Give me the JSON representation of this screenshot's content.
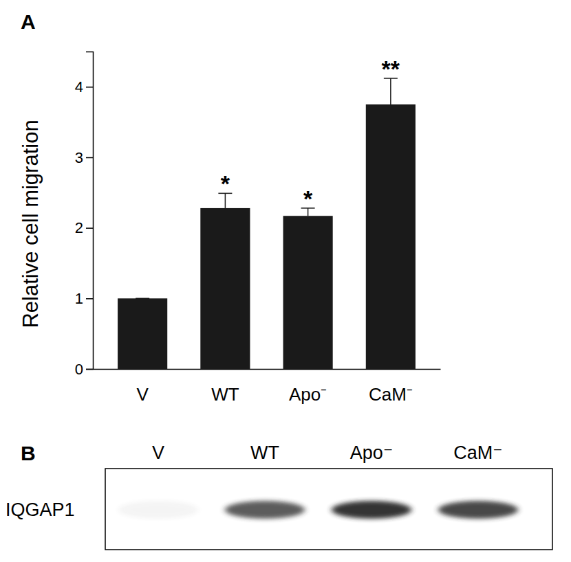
{
  "chart_data": {
    "type": "bar",
    "panel_label": "A",
    "y_label": "Relative cell migration",
    "categories": [
      "V",
      "WT",
      "Apo⁻",
      "CaM⁻"
    ],
    "values": [
      1.0,
      2.28,
      2.17,
      3.75
    ],
    "errors": [
      0,
      0.21,
      0.11,
      0.37
    ],
    "significance": [
      null,
      "*",
      "*",
      "**"
    ],
    "color": "#1a1a1a",
    "ylim": [
      0,
      4.5
    ],
    "yticks": [
      0,
      1,
      2,
      3,
      4
    ],
    "grid": false
  },
  "blot": {
    "panel_label": "B",
    "protein": "IQGAP1",
    "lanes": [
      "V",
      "WT",
      "Apo⁻",
      "CaM⁻"
    ],
    "band_intensity": [
      0.05,
      0.8,
      1,
      0.9
    ]
  }
}
